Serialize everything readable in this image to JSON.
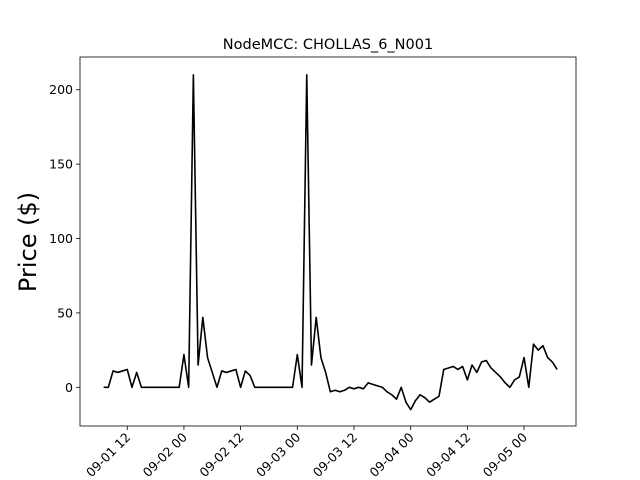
{
  "chart_data": {
    "type": "line",
    "title": "NodeMCC: CHOLLAS_6_N001",
    "y_label": "Price ($)",
    "color": "#000000",
    "x": [
      "09-01 07",
      "09-01 08",
      "09-01 09",
      "09-01 10",
      "09-01 11",
      "09-01 12",
      "09-01 13",
      "09-01 14",
      "09-01 15",
      "09-01 16",
      "09-01 17",
      "09-01 18",
      "09-01 19",
      "09-01 20",
      "09-01 21",
      "09-01 22",
      "09-01 23",
      "09-02 00",
      "09-02 01",
      "09-02 02",
      "09-02 03",
      "09-02 04",
      "09-02 05",
      "09-02 06",
      "09-02 07",
      "09-02 08",
      "09-02 09",
      "09-02 10",
      "09-02 11",
      "09-02 12",
      "09-02 13",
      "09-02 14",
      "09-02 15",
      "09-02 16",
      "09-02 17",
      "09-02 18",
      "09-02 19",
      "09-02 20",
      "09-02 21",
      "09-02 22",
      "09-02 23",
      "09-03 00",
      "09-03 01",
      "09-03 02",
      "09-03 03",
      "09-03 04",
      "09-03 05",
      "09-03 06",
      "09-03 07",
      "09-03 08",
      "09-03 09",
      "09-03 10",
      "09-03 11",
      "09-03 12",
      "09-03 13",
      "09-03 14",
      "09-03 15",
      "09-03 16",
      "09-03 17",
      "09-03 18",
      "09-03 19",
      "09-03 20",
      "09-03 21",
      "09-03 22",
      "09-03 23",
      "09-04 00",
      "09-04 01",
      "09-04 02",
      "09-04 03",
      "09-04 04",
      "09-04 05",
      "09-04 06",
      "09-04 07",
      "09-04 08",
      "09-04 09",
      "09-04 10",
      "09-04 11",
      "09-04 12",
      "09-04 13",
      "09-04 14",
      "09-04 15",
      "09-04 16",
      "09-04 17",
      "09-04 18",
      "09-04 19",
      "09-04 20",
      "09-04 21",
      "09-04 22",
      "09-04 23",
      "09-05 00",
      "09-05 01",
      "09-05 02",
      "09-05 03",
      "09-05 04",
      "09-05 05",
      "09-05 06",
      "09-05 07"
    ],
    "values": [
      0,
      0,
      11,
      10,
      11,
      12,
      0,
      10,
      0,
      0,
      0,
      0,
      0,
      0,
      0,
      0,
      0,
      22,
      0,
      210,
      15,
      47,
      20,
      10,
      0,
      11,
      10,
      11,
      12,
      0,
      11,
      8,
      0,
      0,
      0,
      0,
      0,
      0,
      0,
      0,
      0,
      22,
      0,
      210,
      15,
      47,
      20,
      10,
      -3,
      -2,
      -3,
      -2,
      0,
      -1,
      0,
      -1,
      3,
      2,
      1,
      0,
      -3,
      -5,
      -8,
      0,
      -10,
      -15,
      -9,
      -5,
      -7,
      -10,
      -8,
      -6,
      12,
      13,
      14,
      12,
      14,
      5,
      15,
      10,
      17,
      18,
      13,
      10,
      7,
      3,
      0,
      5,
      7,
      20,
      0,
      29,
      25,
      28,
      20,
      17,
      12
    ],
    "xlim": [
      "09-01 02",
      "09-05 11"
    ],
    "xticks": [
      "09-01 12",
      "09-02 00",
      "09-02 12",
      "09-03 00",
      "09-03 12",
      "09-04 00",
      "09-04 12",
      "09-05 00"
    ],
    "ylim": [
      -26,
      222
    ],
    "yticks": [
      0,
      50,
      100,
      150,
      200
    ]
  }
}
